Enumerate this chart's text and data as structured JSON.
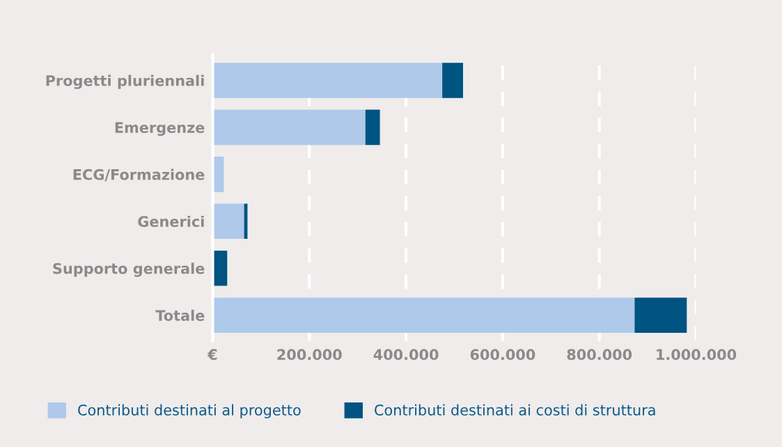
{
  "chart_data": {
    "type": "bar",
    "orientation": "horizontal",
    "stacked": true,
    "categories": [
      "Progetti pluriennali",
      "Emergenze",
      "ECG/Formazione",
      "Generici",
      "Supporto generale",
      "Totale"
    ],
    "series": [
      {
        "name": "Contributi destinati al progetto",
        "color": "#aec9ea",
        "values": [
          475000,
          316000,
          23000,
          65000,
          0,
          873000
        ]
      },
      {
        "name": "Contributi destinati ai costi di struttura",
        "color": "#005482",
        "values": [
          43000,
          30000,
          0,
          7000,
          30000,
          108000
        ]
      }
    ],
    "xlim": [
      0,
      1000000
    ],
    "xticks": [
      {
        "value": 0,
        "label": "€"
      },
      {
        "value": 200000,
        "label": "200.000"
      },
      {
        "value": 400000,
        "label": "400.000"
      },
      {
        "value": 600000,
        "label": "600.000"
      },
      {
        "value": 800000,
        "label": "800.000"
      },
      {
        "value": 1000000,
        "label": "1.000.000"
      }
    ],
    "grid": "x",
    "legend": "bottom"
  }
}
